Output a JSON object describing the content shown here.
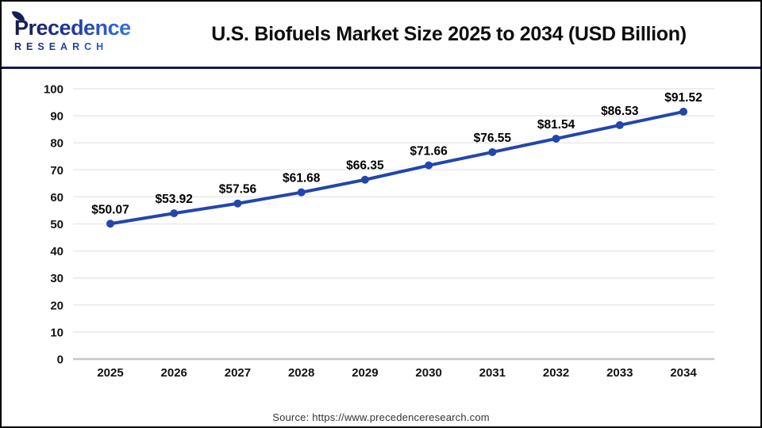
{
  "header": {
    "logo": {
      "line1": "Precedence",
      "line2": "RESEARCH"
    },
    "title": "U.S. Biofuels Market Size 2025 to 2034 (USD Billion)"
  },
  "chart_data": {
    "type": "line",
    "title": "U.S. Biofuels Market Size 2025 to 2034 (USD Billion)",
    "categories": [
      "2025",
      "2026",
      "2027",
      "2028",
      "2029",
      "2030",
      "2031",
      "2032",
      "2033",
      "2034"
    ],
    "values": [
      50.07,
      53.92,
      57.56,
      61.68,
      66.35,
      71.66,
      76.55,
      81.54,
      86.53,
      91.52
    ],
    "point_labels": [
      "$50.07",
      "$53.92",
      "$57.56",
      "$61.68",
      "$66.35",
      "$71.66",
      "$76.55",
      "$81.54",
      "$86.53",
      "$91.52"
    ],
    "xlabel": "",
    "ylabel": "",
    "ylim": [
      0,
      100
    ],
    "ytick_step": 10,
    "grid": "horizontal",
    "legend": "none",
    "line_color": "#2346ab",
    "marker": "circle"
  },
  "footer": {
    "source": "Source: https://www.precedenceresearch.com"
  }
}
